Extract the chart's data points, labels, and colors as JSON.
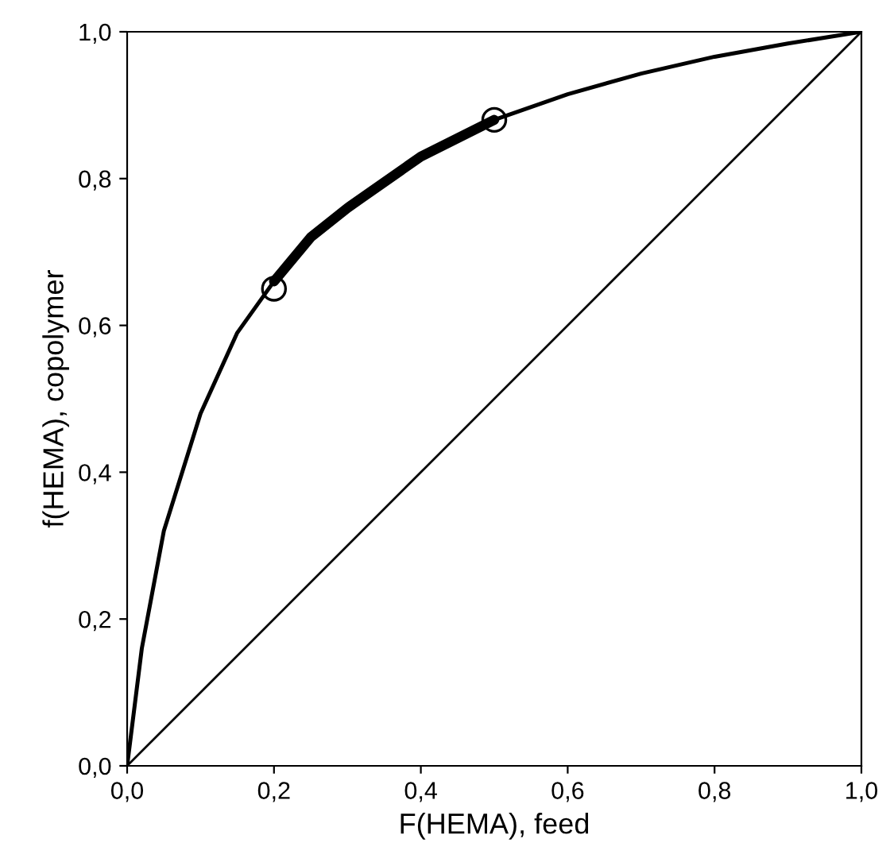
{
  "chart_data": {
    "type": "line",
    "xlabel": "F(HEMA), feed",
    "ylabel": "f(HEMA), copolymer",
    "xlim": [
      0,
      1
    ],
    "ylim": [
      0,
      1
    ],
    "xticks": [
      {
        "value": 0,
        "label": "0,0"
      },
      {
        "value": 0.2,
        "label": "0,2"
      },
      {
        "value": 0.4,
        "label": "0,4"
      },
      {
        "value": 0.6,
        "label": "0,6"
      },
      {
        "value": 0.8,
        "label": "0,8"
      },
      {
        "value": 1,
        "label": "1,0"
      }
    ],
    "yticks": [
      {
        "value": 0,
        "label": "0,0"
      },
      {
        "value": 0.2,
        "label": "0,2"
      },
      {
        "value": 0.4,
        "label": "0,4"
      },
      {
        "value": 0.6,
        "label": "0,6"
      },
      {
        "value": 0.8,
        "label": "0,8"
      },
      {
        "value": 1,
        "label": "1,0"
      }
    ],
    "grid": false,
    "legend": false,
    "series": [
      {
        "color": "#000000",
        "x": [
          0,
          0.02,
          0.05,
          0.1,
          0.15,
          0.2,
          0.25,
          0.3,
          0.4,
          0.5,
          0.6,
          0.7,
          0.8,
          0.9,
          1.0
        ],
        "values": [
          0,
          0.16,
          0.32,
          0.48,
          0.59,
          0.66,
          0.72,
          0.76,
          0.83,
          0.88,
          0.915,
          0.943,
          0.966,
          0.984,
          1.0
        ],
        "line_style": "solid",
        "marker": "none"
      },
      {
        "color": "#000000",
        "x": [
          0.2,
          0.25,
          0.3,
          0.4,
          0.5
        ],
        "values": [
          0.66,
          0.72,
          0.76,
          0.83,
          0.88
        ],
        "line_style": "solid",
        "marker": "none"
      },
      {
        "color": "#000000",
        "x": [
          0,
          1
        ],
        "values": [
          0,
          1
        ],
        "line_style": "solid",
        "marker": "none"
      },
      {
        "type": "scatter",
        "color": "#000000",
        "x": [
          0.2,
          0.5
        ],
        "values": [
          0.65,
          0.88
        ],
        "marker": "circle"
      }
    ]
  }
}
